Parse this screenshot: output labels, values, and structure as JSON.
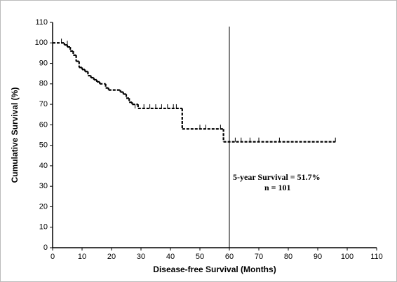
{
  "chart_data": {
    "type": "step",
    "x_label": "Disease-free Survival (Months)",
    "y_label": "Cumulative Survival (%)",
    "x": [
      0,
      4,
      5,
      6,
      7,
      8,
      9,
      10,
      11,
      12,
      13,
      14,
      15,
      16,
      18,
      19,
      23,
      24,
      25,
      26,
      27,
      29,
      44,
      58,
      96
    ],
    "values": [
      100,
      99,
      98,
      96,
      94,
      91,
      88,
      87,
      86,
      84,
      83,
      82,
      81,
      80,
      78,
      77,
      76,
      75,
      73,
      71,
      70,
      68,
      58,
      51.7,
      51.7
    ],
    "censored": {
      "x": [
        3,
        5,
        28,
        31,
        33,
        35,
        37,
        39,
        41,
        42,
        50,
        52,
        57,
        62,
        64,
        67,
        70,
        77
      ],
      "values": [
        100,
        99,
        68,
        68,
        68,
        68,
        68,
        68,
        68,
        68,
        58,
        58,
        58,
        51.7,
        51.7,
        51.7,
        51.7,
        51.7
      ]
    },
    "color": "#000000",
    "vline": 60,
    "annotations": [
      "5-year Survival = 51.7%",
      "n = 101"
    ],
    "xlim": [
      0,
      110
    ],
    "xticks": [
      0,
      10,
      20,
      30,
      40,
      50,
      60,
      70,
      80,
      90,
      100,
      110
    ],
    "ylim": [
      0,
      110
    ],
    "yticks": [
      0,
      10,
      20,
      30,
      40,
      50,
      60,
      70,
      80,
      90,
      100,
      110
    ]
  }
}
